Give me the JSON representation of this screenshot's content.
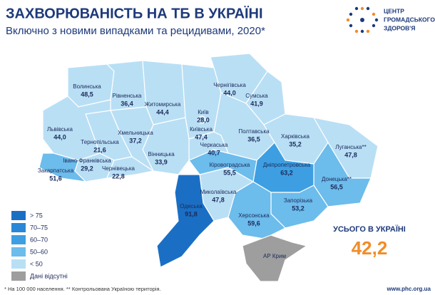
{
  "header": {
    "title": "ЗАХВОРЮВАНІСТЬ НА ТБ В УКРАЇНІ",
    "subtitle": "Включно з новими випадками та рецидивами, 2020*"
  },
  "logo": {
    "lines": [
      "ЦЕНТР",
      "ГРОМАДСЬКОГО",
      "ЗДОРОВ'Я"
    ]
  },
  "regions": [
    {
      "name": "Волинська",
      "value": "48,5",
      "color": "#b9dff5"
    },
    {
      "name": "Рівненська",
      "value": "36,4",
      "color": "#b9dff5"
    },
    {
      "name": "Житомирська",
      "value": "44,4",
      "color": "#b9dff5"
    },
    {
      "name": "Київська",
      "value": "47,4",
      "color": "#b9dff5"
    },
    {
      "name": "Київ",
      "value": "28,0",
      "color": "#b9dff5"
    },
    {
      "name": "Чернігівська",
      "value": "44,0",
      "color": "#b9dff5"
    },
    {
      "name": "Сумська",
      "value": "41,9",
      "color": "#b9dff5"
    },
    {
      "name": "Полтавська",
      "value": "36,5",
      "color": "#b9dff5"
    },
    {
      "name": "Харківська",
      "value": "35,2",
      "color": "#b9dff5"
    },
    {
      "name": "Луганська**",
      "value": "47,8",
      "color": "#b9dff5"
    },
    {
      "name": "Донецька**",
      "value": "56,5",
      "color": "#6cbcec"
    },
    {
      "name": "Дніпропетровська",
      "value": "63,2",
      "color": "#3d9fe2"
    },
    {
      "name": "Запорізька",
      "value": "53,2",
      "color": "#6cbcec"
    },
    {
      "name": "Херсонська",
      "value": "59,6",
      "color": "#6cbcec"
    },
    {
      "name": "Миколаївська",
      "value": "47,8",
      "color": "#b9dff5"
    },
    {
      "name": "Кіровоградська",
      "value": "55,5",
      "color": "#6cbcec"
    },
    {
      "name": "Черкаська",
      "value": "40,7",
      "color": "#b9dff5"
    },
    {
      "name": "Вінницька",
      "value": "33,9",
      "color": "#b9dff5"
    },
    {
      "name": "Одеська",
      "value": "91,8",
      "color": "#1a6fc4"
    },
    {
      "name": "Хмельницька",
      "value": "37,2",
      "color": "#b9dff5"
    },
    {
      "name": "Тернопільська",
      "value": "21,6",
      "color": "#b9dff5"
    },
    {
      "name": "Львівська",
      "value": "44,0",
      "color": "#b9dff5"
    },
    {
      "name": "Івано-Франківська",
      "value": "29,2",
      "color": "#b9dff5"
    },
    {
      "name": "Чернівецька",
      "value": "22,8",
      "color": "#b9dff5"
    },
    {
      "name": "Закарпатська",
      "value": "51,6",
      "color": "#6cbcec"
    },
    {
      "name": "АР Крим",
      "color": "#9e9e9e"
    }
  ],
  "legend": [
    {
      "label": "> 75",
      "color": "#1a6fc4"
    },
    {
      "label": "70–75",
      "color": "#2a86d6"
    },
    {
      "label": "60–70",
      "color": "#3d9fe2"
    },
    {
      "label": "50–60",
      "color": "#6cbcec"
    },
    {
      "label": "< 50",
      "color": "#b9dff5"
    },
    {
      "label": "Дані відсутні",
      "color": "#9e9e9e"
    }
  ],
  "total": {
    "label": "УСЬОГО В УКРАЇНІ",
    "value": "42,2"
  },
  "footnote": "* На 100 000 населення. ** Контрольована Україною територія.",
  "url": "www.phc.org.ua"
}
